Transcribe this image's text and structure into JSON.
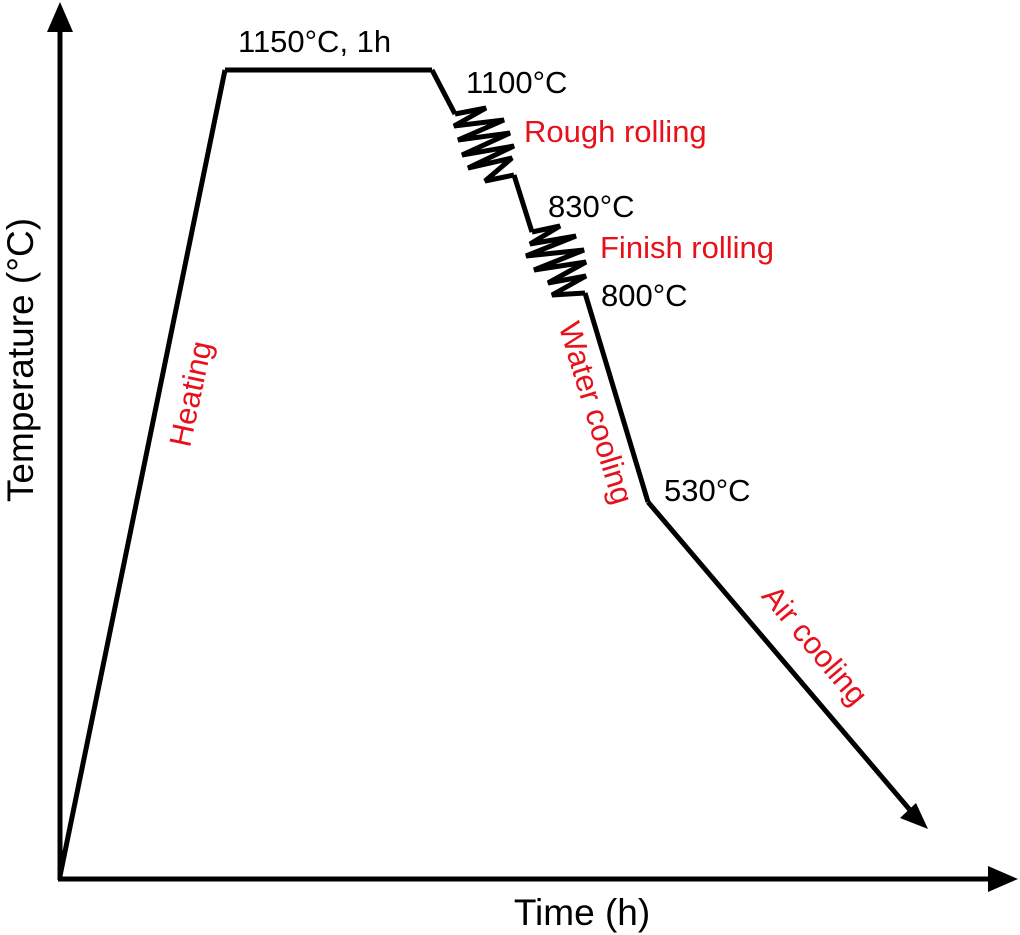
{
  "axes": {
    "x_label": "Time (h)",
    "y_label": "Temperature (°C)"
  },
  "temperatures": {
    "soak": "1150°C, 1h",
    "rough_start": "1100°C",
    "finish_start": "830°C",
    "finish_end": "800°C",
    "cooling_stop": "530°C"
  },
  "stages": {
    "heating": "Heating",
    "rough_rolling": "Rough rolling",
    "finish_rolling": "Finish rolling",
    "water_cooling": "Water cooling",
    "air_cooling": "Air cooling"
  },
  "colors": {
    "line": "#000000",
    "stage_text": "#e8101a",
    "temp_text": "#000000"
  }
}
